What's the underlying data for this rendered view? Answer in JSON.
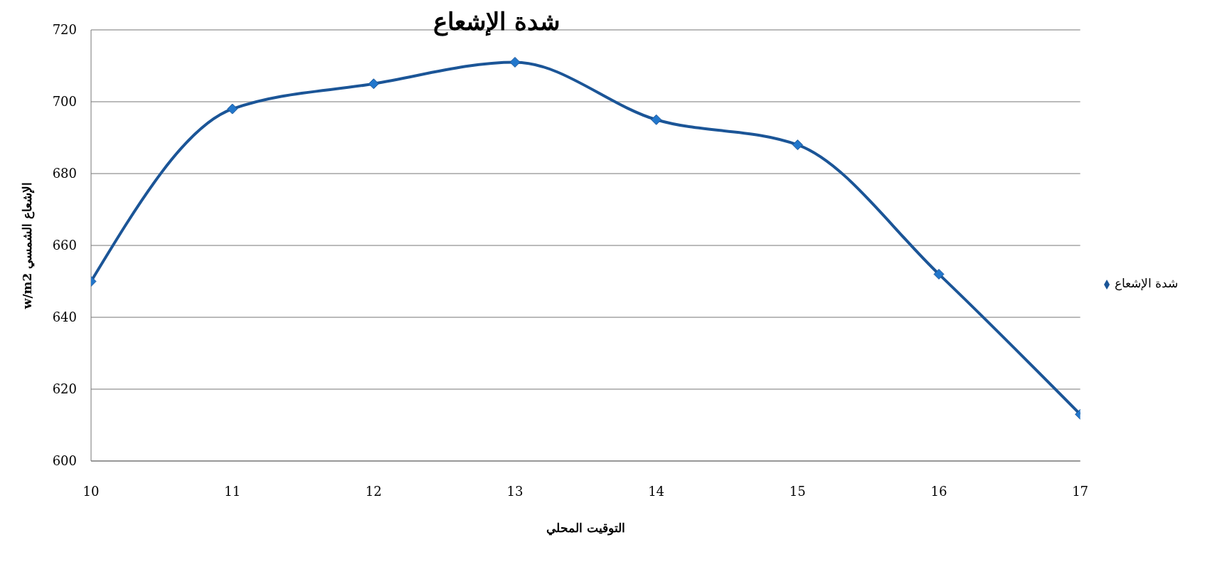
{
  "chart_data": {
    "type": "line",
    "title": "شدة الإشعاع",
    "xlabel": "التوقيت المحلي",
    "ylabel": "w/m2 الإشعاع الشمسي",
    "x": [
      10,
      11,
      12,
      13,
      14,
      15,
      16,
      17
    ],
    "series": [
      {
        "name": "شدة الإشعاع",
        "color": "#1b5597",
        "values": [
          650,
          698,
          705,
          711,
          695,
          688,
          652,
          613
        ]
      }
    ],
    "xlim": [
      10,
      17
    ],
    "xticks": [
      10,
      11,
      12,
      13,
      14,
      15,
      16,
      17
    ],
    "ylim": [
      600,
      720
    ],
    "yticks": [
      600,
      620,
      640,
      660,
      680,
      700,
      720
    ],
    "grid": "y",
    "legend": "right",
    "marker": "diamond",
    "line_style": "solid"
  }
}
